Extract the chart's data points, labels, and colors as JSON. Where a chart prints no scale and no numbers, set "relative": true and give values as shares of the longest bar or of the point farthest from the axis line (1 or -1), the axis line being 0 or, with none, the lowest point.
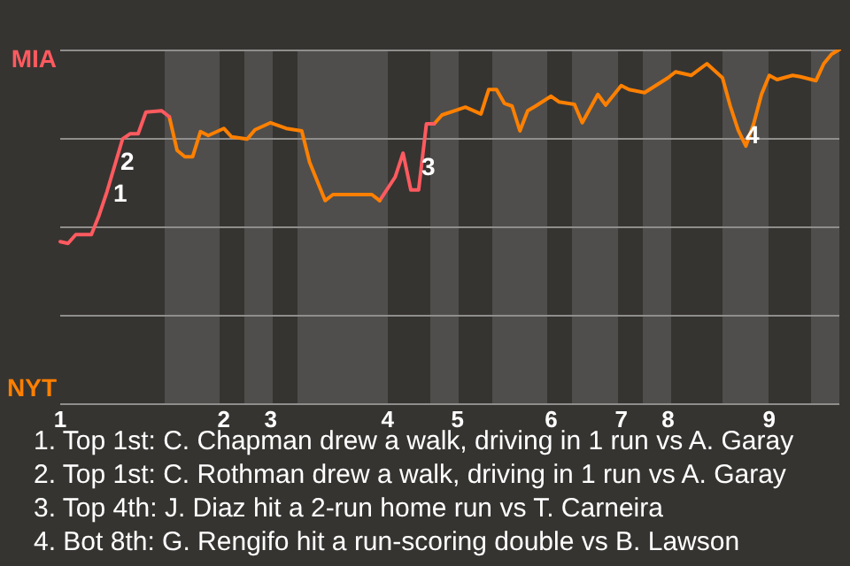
{
  "chart_data": {
    "type": "line",
    "relative": true,
    "categories": [
      "1",
      null,
      null,
      null,
      null,
      null,
      null,
      null,
      null,
      null,
      null,
      null,
      null,
      null,
      null,
      null,
      null,
      null,
      null,
      null,
      null,
      "2",
      null,
      null,
      null,
      null,
      null,
      "3",
      null,
      null,
      null,
      null,
      null,
      null,
      null,
      null,
      null,
      null,
      null,
      null,
      null,
      null,
      "4",
      null,
      null,
      null,
      null,
      null,
      null,
      null,
      null,
      "5",
      null,
      null,
      null,
      null,
      null,
      null,
      null,
      null,
      null,
      null,
      null,
      "6",
      null,
      null,
      null,
      null,
      null,
      null,
      null,
      null,
      "7",
      null,
      null,
      null,
      null,
      null,
      "8",
      null,
      null,
      null,
      null,
      null,
      null,
      null,
      null,
      null,
      null,
      null,
      null,
      "9",
      null,
      null,
      null,
      null,
      null,
      null,
      null,
      null,
      null
    ],
    "series": [
      {
        "color": "#ff5a5f",
        "values": [
          0.457,
          0.452,
          0.477,
          null,
          0.477,
          0.532,
          0.598,
          null,
          0.747,
          0.762,
          0.762,
          0.823,
          null,
          0.827,
          0.81,
          null,
          null,
          null,
          null,
          null,
          null,
          null,
          null,
          null,
          null,
          null,
          null,
          null,
          null,
          null,
          null,
          null,
          null,
          null,
          null,
          null,
          null,
          null,
          null,
          null,
          null,
          null,
          null,
          null,
          null,
          null,
          null,
          null,
          null,
          null,
          null,
          null,
          null,
          null,
          null,
          null,
          null,
          null,
          null,
          null,
          null,
          null,
          null,
          null,
          null,
          null,
          null,
          null,
          null,
          null,
          null,
          null,
          null,
          null,
          null,
          null,
          null,
          null,
          null,
          null,
          null,
          null,
          null,
          null,
          null,
          null,
          null,
          null,
          null,
          null,
          null,
          null,
          null,
          null,
          null,
          null,
          null,
          null,
          null,
          null,
          null
        ]
      },
      {
        "color": "#ff8000",
        "values": [
          null,
          null,
          null,
          null,
          null,
          null,
          null,
          null,
          null,
          null,
          null,
          null,
          null,
          null,
          0.81,
          0.715,
          0.697,
          0.697,
          0.768,
          0.757,
          null,
          0.777,
          0.753,
          null,
          0.747,
          0.773,
          null,
          0.793,
          null,
          0.777,
          null,
          0.77,
          0.682,
          null,
          0.573,
          0.59,
          null,
          null,
          null,
          null,
          0.59,
          0.573,
          null,
          null,
          null,
          null,
          null,
          null,
          null,
          null,
          null,
          null,
          null,
          null,
          null,
          null,
          null,
          null,
          null,
          null,
          null,
          null,
          null,
          null,
          null,
          null,
          null,
          null,
          null,
          null,
          null,
          null,
          null,
          null,
          null,
          null,
          null,
          null,
          null,
          null,
          null,
          null,
          null,
          null,
          null,
          null,
          null,
          null,
          null,
          null,
          null,
          null,
          null,
          null,
          null,
          null,
          null,
          null,
          null,
          null,
          null
        ]
      },
      {
        "color": "#ff5a5f",
        "values": [
          null,
          null,
          null,
          null,
          null,
          null,
          null,
          null,
          null,
          null,
          null,
          null,
          null,
          null,
          null,
          null,
          null,
          null,
          null,
          null,
          null,
          null,
          null,
          null,
          null,
          null,
          null,
          null,
          null,
          null,
          null,
          null,
          null,
          null,
          null,
          null,
          null,
          null,
          null,
          null,
          null,
          0.573,
          null,
          0.64,
          0.707,
          0.603,
          0.603,
          0.79,
          0.79,
          null,
          null,
          null,
          null,
          null,
          null,
          null,
          null,
          null,
          null,
          null,
          null,
          null,
          null,
          null,
          null,
          null,
          null,
          null,
          null,
          null,
          null,
          null,
          null,
          null,
          null,
          null,
          null,
          null,
          null,
          null,
          null,
          null,
          null,
          null,
          null,
          null,
          null,
          null,
          null,
          null,
          null,
          null,
          null,
          null,
          null,
          null,
          null,
          null,
          null,
          null,
          null
        ]
      },
      {
        "color": "#ff8000",
        "values": [
          null,
          null,
          null,
          null,
          null,
          null,
          null,
          null,
          null,
          null,
          null,
          null,
          null,
          null,
          null,
          null,
          null,
          null,
          null,
          null,
          null,
          null,
          null,
          null,
          null,
          null,
          null,
          null,
          null,
          null,
          null,
          null,
          null,
          null,
          null,
          null,
          null,
          null,
          null,
          null,
          null,
          null,
          null,
          null,
          null,
          null,
          null,
          null,
          0.79,
          0.815,
          null,
          null,
          0.837,
          null,
          0.818,
          0.887,
          0.887,
          0.848,
          0.84,
          0.77,
          0.827,
          0.84,
          null,
          0.868,
          0.852,
          null,
          0.845,
          0.793,
          null,
          0.873,
          0.843,
          null,
          0.898,
          0.887,
          null,
          0.878,
          null,
          null,
          0.92,
          0.937,
          null,
          0.927,
          null,
          0.96,
          null,
          0.92,
          0.84,
          0.773,
          0.727,
          0.79,
          0.873,
          0.927,
          0.915,
          null,
          0.927,
          0.923,
          null,
          0.912,
          0.96,
          0.987,
          1
        ]
      }
    ],
    "grid": "y",
    "legend": false,
    "marker": "none",
    "line_style": "solid",
    "annotations": [
      "MIA",
      "NYT",
      "1",
      "2",
      "3",
      "4",
      "1. Top 1st: C. Chapman drew a walk, driving in 1 run vs A. Garay",
      "2. Top 1st: C. Rothman drew a walk, driving in 1 run vs A. Garay",
      "3. Top 4th: J. Diaz hit a 2-run home run vs T. Carneira",
      "4. Bot 8th: G. Rengifo hit a run-scoring double vs B. Lawson"
    ]
  }
}
